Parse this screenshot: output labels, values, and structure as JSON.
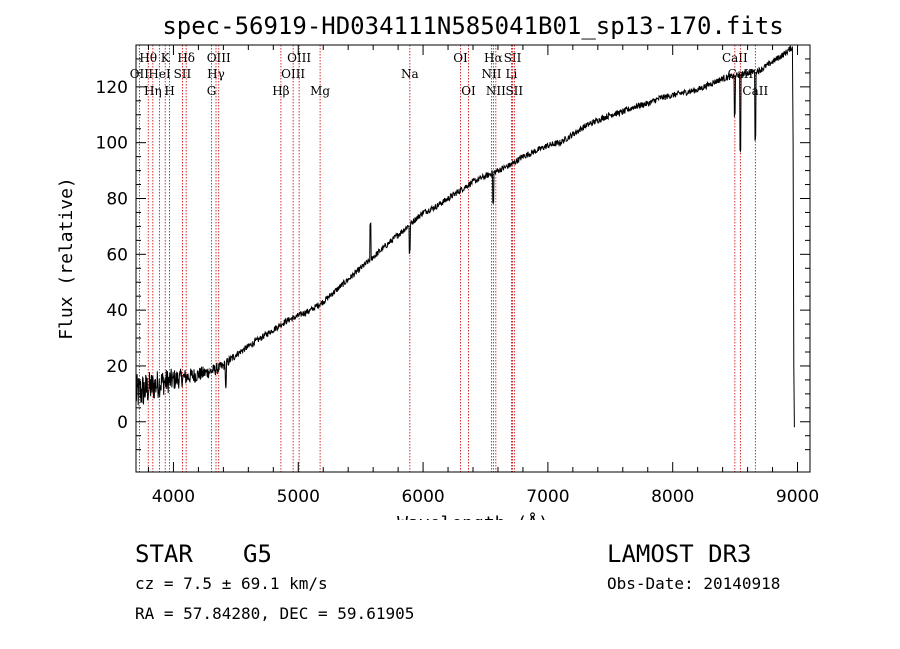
{
  "chart_data": {
    "type": "line",
    "title": "spec-56919-HD034111N585041B01_sp13-170.fits",
    "xlabel": "Wavelength (Å)",
    "ylabel": "Flux (relative)",
    "xlim": [
      3700,
      9100
    ],
    "ylim": [
      -18,
      135
    ],
    "xticks": [
      4000,
      5000,
      6000,
      7000,
      8000,
      9000
    ],
    "yticks": [
      0,
      20,
      40,
      60,
      80,
      100,
      120
    ],
    "series": [
      {
        "name": "spectrum",
        "x": [
          3700,
          3800,
          3900,
          4000,
          4100,
          4200,
          4300,
          4400,
          4500,
          4600,
          4700,
          4800,
          4900,
          5000,
          5100,
          5200,
          5300,
          5400,
          5500,
          5600,
          5700,
          5800,
          5900,
          6000,
          6100,
          6200,
          6300,
          6400,
          6500,
          6600,
          6700,
          6800,
          6900,
          7000,
          7100,
          7200,
          7300,
          7400,
          7500,
          7600,
          7700,
          7800,
          7900,
          8000,
          8100,
          8200,
          8300,
          8400,
          8500,
          8600,
          8700,
          8800,
          8900,
          8950
        ],
        "values": [
          10,
          12,
          14,
          15,
          16,
          17,
          18,
          20,
          24,
          27,
          30,
          33,
          36,
          38,
          40,
          43,
          47,
          51,
          55,
          59,
          63,
          67,
          71,
          75,
          77,
          80,
          83,
          86,
          88,
          90,
          92,
          95,
          97,
          99,
          100,
          103,
          106,
          108,
          110,
          111,
          113,
          114,
          116,
          117,
          118,
          119,
          121,
          123,
          124,
          125,
          126,
          129,
          132,
          134
        ]
      }
    ],
    "lines": [
      {
        "name": "Hθ",
        "wl": 3798,
        "pos": "top",
        "row": 1
      },
      {
        "name": "OII",
        "wl": 3727,
        "pos": "top",
        "row": 2
      },
      {
        "name": "Hη",
        "wl": 3835,
        "pos": "top",
        "row": 3
      },
      {
        "name": "HeI",
        "wl": 3889,
        "pos": "top",
        "row": 2
      },
      {
        "name": "K",
        "wl": 3934,
        "pos": "top",
        "row": 1
      },
      {
        "name": "H",
        "wl": 3969,
        "pos": "top",
        "row": 3
      },
      {
        "name": "SII",
        "wl": 4072,
        "pos": "top",
        "row": 2
      },
      {
        "name": "Hδ",
        "wl": 4102,
        "pos": "top",
        "row": 1
      },
      {
        "name": "G",
        "wl": 4305,
        "pos": "top",
        "row": 3
      },
      {
        "name": "Hγ",
        "wl": 4341,
        "pos": "top",
        "row": 2
      },
      {
        "name": "OIII",
        "wl": 4363,
        "pos": "top",
        "row": 1
      },
      {
        "name": "Hβ",
        "wl": 4861,
        "pos": "top",
        "row": 3
      },
      {
        "name": "OIII",
        "wl": 4959,
        "pos": "top",
        "row": 2
      },
      {
        "name": "OIII",
        "wl": 5007,
        "pos": "top",
        "row": 1
      },
      {
        "name": "Mg",
        "wl": 5175,
        "pos": "top",
        "row": 3
      },
      {
        "name": "Na",
        "wl": 5894,
        "pos": "top",
        "row": 2
      },
      {
        "name": "OI",
        "wl": 6300,
        "pos": "top",
        "row": 1
      },
      {
        "name": "OI",
        "wl": 6364,
        "pos": "top",
        "row": 3
      },
      {
        "name": "NII",
        "wl": 6548,
        "pos": "top",
        "row": 2
      },
      {
        "name": "Hα",
        "wl": 6563,
        "pos": "top",
        "row": 1
      },
      {
        "name": "NII",
        "wl": 6583,
        "pos": "top",
        "row": 3
      },
      {
        "name": "Li",
        "wl": 6708,
        "pos": "top",
        "row": 2
      },
      {
        "name": "SII",
        "wl": 6717,
        "pos": "top",
        "row": 1
      },
      {
        "name": "SII",
        "wl": 6731,
        "pos": "top",
        "row": 3
      },
      {
        "name": "CaII",
        "wl": 8498,
        "pos": "top",
        "row": 1
      },
      {
        "name": "CaII",
        "wl": 8542,
        "pos": "top",
        "row": 2
      },
      {
        "name": "CaII",
        "wl": 8662,
        "pos": "top",
        "row": 3
      }
    ],
    "colors": {
      "spectrum": "#000000",
      "lines": "#cc0000",
      "axes": "#000000"
    }
  },
  "info": {
    "object": "STAR",
    "subclass": "G5",
    "survey": "LAMOST DR3",
    "cz": "cz = 7.5 ± 69.1 km/s",
    "obs_date": "Obs-Date: 20140918",
    "coords": "RA =  57.84280, DEC =  59.61905"
  }
}
